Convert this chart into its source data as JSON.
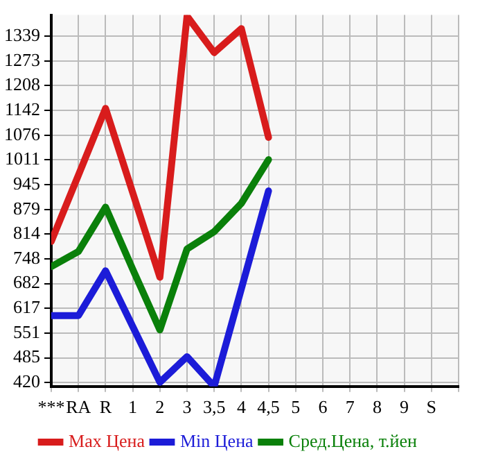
{
  "chart_data": {
    "type": "line",
    "categories": [
      "***",
      "RA",
      "R",
      "1",
      "2",
      "3",
      "3,5",
      "4",
      "4,5",
      "5",
      "6",
      "7",
      "8",
      "9",
      "S"
    ],
    "series": [
      {
        "name": "Max Цена",
        "color": "#d81c1c",
        "values": [
          794,
          970,
          1147,
          923,
          699,
          1392,
          1295,
          1359,
          1070,
          null,
          null,
          null,
          null,
          null,
          null
        ]
      },
      {
        "name": "Min Цена",
        "color": "#1c1cd8",
        "values": [
          597,
          597,
          716,
          568,
          420,
          488,
          409,
          668,
          928,
          null,
          null,
          null,
          null,
          null,
          null
        ]
      },
      {
        "name": "Сред.Цена, т.йен",
        "color": "#0a800a",
        "values": [
          727,
          767,
          885,
          720,
          559,
          774,
          820,
          895,
          1011,
          null,
          null,
          null,
          null,
          null,
          null
        ]
      }
    ],
    "ylim": [
      409,
      1395
    ],
    "yticks": [
      420,
      485,
      551,
      617,
      682,
      748,
      814,
      879,
      945,
      1011,
      1076,
      1142,
      1208,
      1273,
      1339
    ],
    "grid": true,
    "legend": "bottom",
    "marker": "none",
    "line_style": "solid"
  }
}
